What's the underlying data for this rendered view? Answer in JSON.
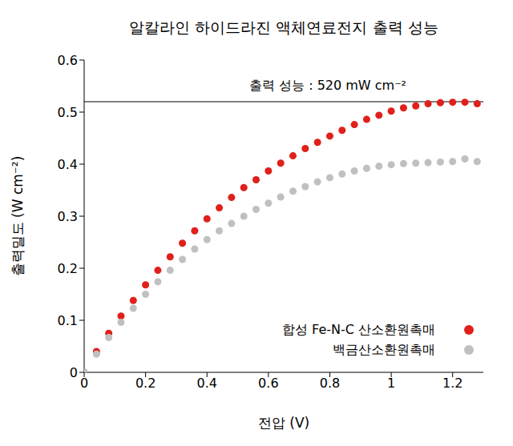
{
  "chart_data": {
    "type": "scatter",
    "title": "알칼라인 하이드라진 액체연료전지 출력 성능",
    "x_label": "전압 (V)",
    "y_label": "출력밀도 (W cm⁻²)",
    "x": [
      0,
      0.04,
      0.08,
      0.12,
      0.16,
      0.2,
      0.24,
      0.28,
      0.32,
      0.36,
      0.4,
      0.44,
      0.48,
      0.52,
      0.56,
      0.6,
      0.64,
      0.68,
      0.72,
      0.76,
      0.8,
      0.84,
      0.88,
      0.92,
      0.96,
      1.0,
      1.04,
      1.08,
      1.12,
      1.16,
      1.2,
      1.24,
      1.28
    ],
    "series": [
      {
        "name": "합성 Fe-N-C 산소환원촉매",
        "color": "#e0201b",
        "marker": "circle",
        "values": [
          0,
          0.04,
          0.075,
          0.108,
          0.138,
          0.168,
          0.196,
          0.222,
          0.248,
          0.272,
          0.295,
          0.316,
          0.336,
          0.355,
          0.37,
          0.387,
          0.402,
          0.416,
          0.43,
          0.442,
          0.454,
          0.465,
          0.476,
          0.486,
          0.494,
          0.502,
          0.508,
          0.512,
          0.516,
          0.518,
          0.519,
          0.519,
          0.516
        ]
      },
      {
        "name": "백금산소환원촉매",
        "color": "#c0c0c0",
        "marker": "circle",
        "values": [
          0,
          0.035,
          0.067,
          0.096,
          0.123,
          0.15,
          0.174,
          0.196,
          0.217,
          0.237,
          0.255,
          0.272,
          0.286,
          0.3,
          0.313,
          0.325,
          0.337,
          0.348,
          0.357,
          0.366,
          0.374,
          0.381,
          0.387,
          0.392,
          0.396,
          0.399,
          0.401,
          0.402,
          0.403,
          0.404,
          0.405,
          0.41,
          0.405
        ]
      }
    ],
    "xlim": [
      0,
      1.3
    ],
    "xticks": [
      0,
      0.2,
      0.4,
      0.6,
      0.8,
      1,
      1.2
    ],
    "ylim": [
      0,
      0.6
    ],
    "yticks": [
      0,
      0.1,
      0.2,
      0.3,
      0.4,
      0.5,
      0.6
    ],
    "grid": false,
    "legend": "lower right",
    "annotations": [
      {
        "text": "출력 성능 : 520 mW cm⁻²",
        "y": 0.52
      }
    ]
  }
}
